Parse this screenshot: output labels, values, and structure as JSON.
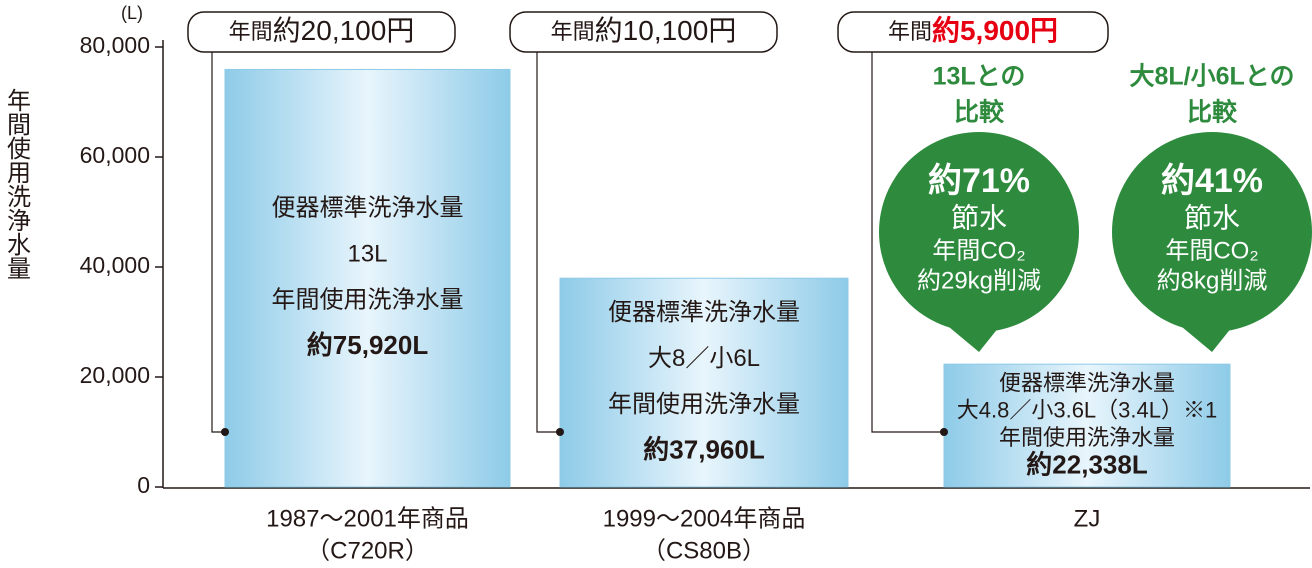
{
  "chart_data": {
    "type": "bar",
    "unit": "(L)",
    "y_label": "年間使用洗浄水量",
    "categories": [
      [
        "1987～2001年商品",
        "（C720R）"
      ],
      [
        "1999～2004年商品",
        "（CS80B）"
      ],
      [
        "ZJ"
      ]
    ],
    "values": [
      75920,
      37960,
      22338
    ],
    "value_labels": [
      "約75,920L",
      "約37,960L",
      "約22,338L"
    ],
    "bar_notes": [
      [
        "便器標準洗浄水量",
        "13L",
        "年間使用洗浄水量"
      ],
      [
        "便器標準洗浄水量",
        "大8／小6L",
        "年間使用洗浄水量"
      ],
      [
        "便器標準洗浄水量",
        "大4.8／小3.6L（3.4L）※1",
        "年間使用洗浄水量"
      ]
    ],
    "color": "#8ecbe8",
    "ylim": [
      0,
      80000
    ],
    "yticks": [
      0,
      {
        "value": 20000,
        "label": "20,000"
      },
      {
        "value": 40000,
        "label": "40,000"
      },
      {
        "value": 60000,
        "label": "60,000"
      },
      {
        "value": 80000,
        "label": "80,000"
      }
    ],
    "annual_costs": [
      {
        "prefix": "年間",
        "amount": "約20,100円",
        "color": "#231815"
      },
      {
        "prefix": "年間",
        "amount": "約10,100円",
        "color": "#231815"
      },
      {
        "prefix": "年間",
        "amount": "約5,900円",
        "color": "#e60012"
      }
    ],
    "comparison_color": "#2e8b3e",
    "comparisons": [
      {
        "heading": [
          "13Lとの",
          "比較"
        ],
        "lines": [
          "約71%",
          "節水",
          "年間CO₂",
          "約29kg削減"
        ]
      },
      {
        "heading": [
          "大8L/小6Lとの",
          "比較"
        ],
        "lines": [
          "約41%",
          "節水",
          "年間CO₂",
          "約8kg削減"
        ]
      }
    ]
  }
}
